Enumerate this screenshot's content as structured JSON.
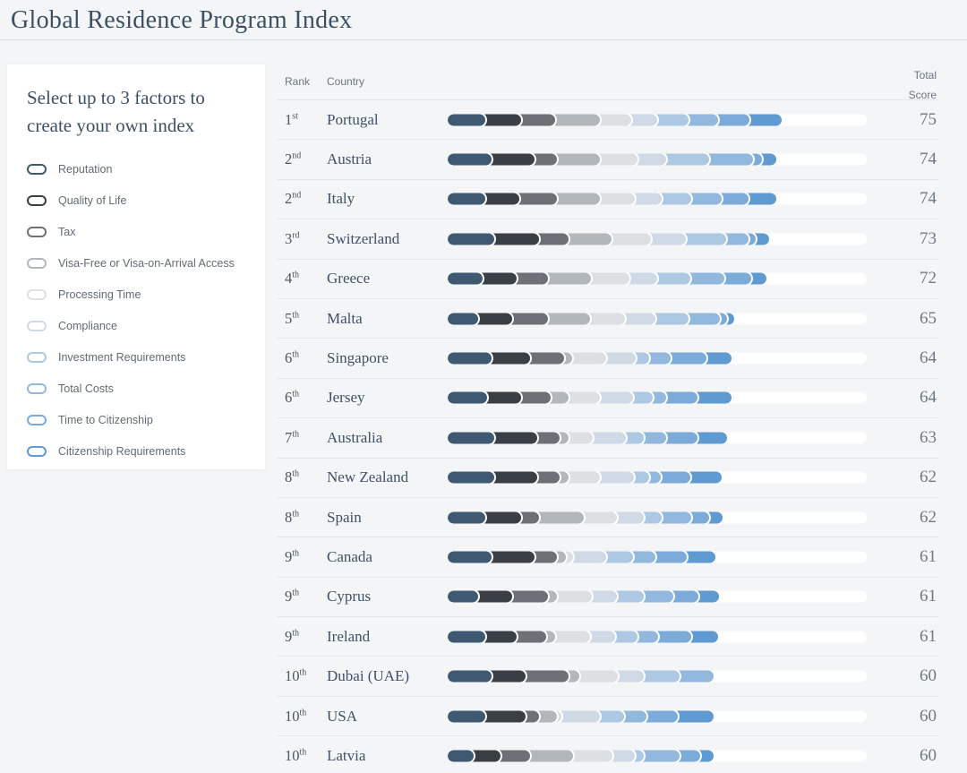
{
  "page": {
    "title": "Global Residence Program Index"
  },
  "sidebar": {
    "heading": "Select up to 3 factors to create your own index",
    "factors": [
      {
        "label": "Reputation",
        "color": "#3e5971"
      },
      {
        "label": "Quality of Life",
        "color": "#3a3f45"
      },
      {
        "label": "Tax",
        "color": "#6d7177"
      },
      {
        "label": "Visa-Free or Visa-on-Arrival Access",
        "color": "#b2b7bc"
      },
      {
        "label": "Processing Time",
        "color": "#dde0e3"
      },
      {
        "label": "Compliance",
        "color": "#cfdae6"
      },
      {
        "label": "Investment Requirements",
        "color": "#adc8e3"
      },
      {
        "label": "Total Costs",
        "color": "#93b8de"
      },
      {
        "label": "Time to Citizenship",
        "color": "#7cabd9"
      },
      {
        "label": "Citizenship Requirements",
        "color": "#5f9ad3"
      }
    ]
  },
  "table": {
    "headers": {
      "rank": "Rank",
      "country": "Country",
      "total_score": "Total Score"
    },
    "rows": [
      {
        "rank": "1",
        "ordinal": "st",
        "country": "Portugal",
        "score": "75",
        "segments": [
          9.0,
          8.5,
          8.1,
          10.7,
          7.5,
          6.2,
          7.5,
          7.1,
          7.5,
          7.5
        ]
      },
      {
        "rank": "2",
        "ordinal": "nd",
        "country": "Austria",
        "score": "74",
        "segments": [
          10.5,
          10.3,
          5.3,
          10.3,
          9.0,
          6.8,
          10.3,
          10.3,
          2.1,
          3.6
        ]
      },
      {
        "rank": "2",
        "ordinal": "nd",
        "country": "Italy",
        "score": "74",
        "segments": [
          9.0,
          8.1,
          9.0,
          10.3,
          8.3,
          6.4,
          7.1,
          7.1,
          6.4,
          6.8
        ]
      },
      {
        "rank": "3",
        "ordinal": "rd",
        "country": "Switzerland",
        "score": "73",
        "segments": [
          11.1,
          10.7,
          7.1,
          10.3,
          9.2,
          8.5,
          9.6,
          5.3,
          1.7,
          3.2
        ]
      },
      {
        "rank": "4",
        "ordinal": "th",
        "country": "Greece",
        "score": "72",
        "segments": [
          8.3,
          8.1,
          7.5,
          10.3,
          9.2,
          6.6,
          7.9,
          8.1,
          6.4,
          3.6
        ]
      },
      {
        "rank": "5",
        "ordinal": "th",
        "country": "Malta",
        "score": "65",
        "segments": [
          7.3,
          8.1,
          8.5,
          10.0,
          8.5,
          7.1,
          7.9,
          7.5,
          1.7,
          1.7
        ]
      },
      {
        "rank": "6",
        "ordinal": "th",
        "country": "Singapore",
        "score": "64",
        "segments": [
          10.5,
          9.2,
          8.1,
          1.9,
          8.1,
          7.1,
          3.2,
          5.1,
          8.5,
          6.0
        ]
      },
      {
        "rank": "6",
        "ordinal": "th",
        "country": "Jersey",
        "score": "64",
        "segments": [
          9.4,
          8.1,
          7.1,
          4.3,
          7.5,
          7.9,
          4.7,
          3.2,
          7.5,
          8.1
        ]
      },
      {
        "rank": "7",
        "ordinal": "th",
        "country": "Australia",
        "score": "63",
        "segments": [
          11.1,
          10.3,
          5.3,
          2.1,
          5.8,
          7.9,
          4.3,
          5.3,
          7.5,
          7.1
        ]
      },
      {
        "rank": "8",
        "ordinal": "th",
        "country": "New Zealand",
        "score": "62",
        "segments": [
          11.1,
          10.3,
          5.3,
          2.1,
          7.5,
          8.1,
          3.6,
          2.8,
          7.1,
          7.5
        ]
      },
      {
        "rank": "8",
        "ordinal": "th",
        "country": "Spain",
        "score": "62",
        "segments": [
          9.0,
          8.5,
          4.3,
          10.7,
          7.9,
          6.4,
          4.3,
          7.1,
          4.3,
          3.2
        ]
      },
      {
        "rank": "9",
        "ordinal": "th",
        "country": "Canada",
        "score": "61",
        "segments": [
          10.5,
          10.3,
          5.3,
          2.1,
          1.7,
          7.9,
          6.4,
          5.3,
          7.5,
          6.8
        ]
      },
      {
        "rank": "9",
        "ordinal": "th",
        "country": "Cyprus",
        "score": "61",
        "segments": [
          7.3,
          8.1,
          8.5,
          2.1,
          8.5,
          5.8,
          6.4,
          7.1,
          6.0,
          4.9
        ]
      },
      {
        "rank": "9",
        "ordinal": "th",
        "country": "Ireland",
        "score": "61",
        "segments": [
          9.0,
          7.5,
          7.1,
          2.1,
          8.3,
          6.0,
          5.3,
          4.9,
          7.9,
          6.4
        ]
      },
      {
        "rank": "10",
        "ordinal": "th",
        "country": "Dubai (UAE)",
        "score": "60",
        "segments": [
          10.5,
          8.1,
          10.3,
          2.6,
          9.0,
          6.4,
          8.5,
          8.1,
          0,
          0
        ]
      },
      {
        "rank": "10",
        "ordinal": "th",
        "country": "USA",
        "score": "60",
        "segments": [
          9.0,
          9.6,
          3.2,
          4.3,
          1.1,
          9.2,
          5.8,
          5.3,
          7.5,
          8.5
        ]
      },
      {
        "rank": "10",
        "ordinal": "th",
        "country": "Latvia",
        "score": "60",
        "segments": [
          6.2,
          6.4,
          7.1,
          10.3,
          9.4,
          5.3,
          2.1,
          8.5,
          4.9,
          3.2
        ]
      }
    ]
  }
}
